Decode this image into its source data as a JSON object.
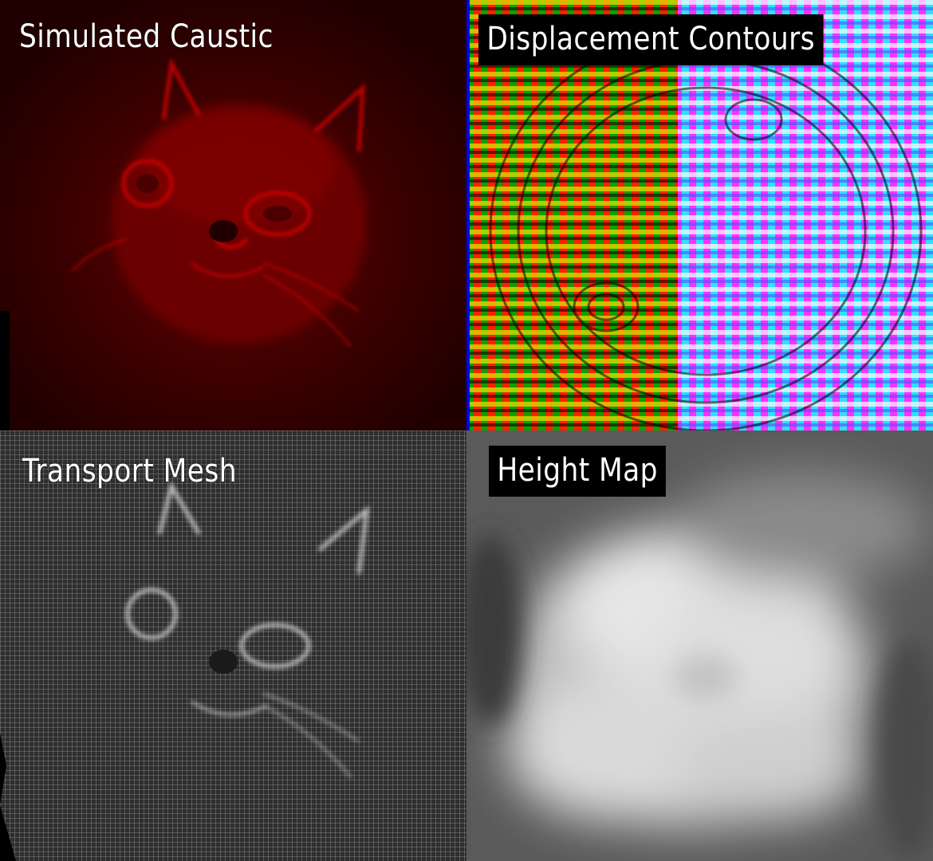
{
  "panels": [
    {
      "id": "caustic",
      "title": "Simulated Caustic"
    },
    {
      "id": "contours",
      "title": "Displacement Contours"
    },
    {
      "id": "mesh",
      "title": "Transport Mesh"
    },
    {
      "id": "height",
      "title": "Height Map"
    }
  ],
  "colors": {
    "caustic_bg": "#2a0000",
    "caustic_highlight": "#d40000",
    "mesh_bg": "#3a3a3a",
    "mesh_line": "#bdbdbd",
    "height_bg": "#5c5c5c",
    "height_highlight": "#ededed",
    "label_box": "#000000",
    "label_text": "#ffffff"
  }
}
